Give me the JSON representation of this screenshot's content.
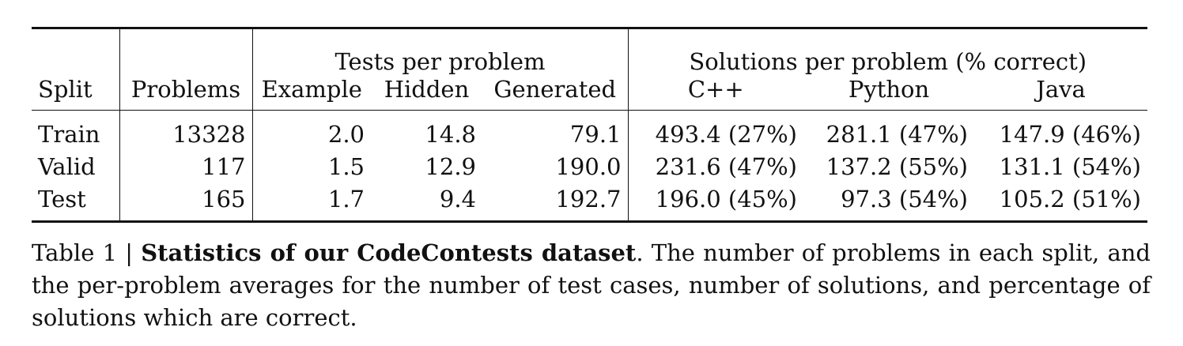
{
  "table": {
    "header_groups": {
      "tests": "Tests per problem",
      "solutions": "Solutions per problem (% correct)"
    },
    "columns": {
      "split": "Split",
      "problems": "Problems",
      "example": "Example",
      "hidden": "Hidden",
      "generated": "Generated",
      "cpp": "C++",
      "python": "Python",
      "java": "Java"
    },
    "rows": [
      {
        "split": "Train",
        "problems": "13328",
        "example": "2.0",
        "hidden": "14.8",
        "generated": "79.1",
        "cpp": "493.4 (27%)",
        "python": "281.1 (47%)",
        "java": "147.9 (46%)"
      },
      {
        "split": "Valid",
        "problems": "117",
        "example": "1.5",
        "hidden": "12.9",
        "generated": "190.0",
        "cpp": "231.6 (47%)",
        "python": "137.2 (55%)",
        "java": "131.1 (54%)"
      },
      {
        "split": "Test",
        "problems": "165",
        "example": "1.7",
        "hidden": "9.4",
        "generated": "192.7",
        "cpp": "196.0 (45%)",
        "python": "97.3 (54%)",
        "java": "105.2 (51%)"
      }
    ]
  },
  "caption": {
    "label": "Table 1 | ",
    "title": "Statistics of our CodeContests dataset",
    "body": ". The number of problems in each split, and the per-problem averages for the number of test cases, number of solutions, and percentage of solutions which are correct."
  }
}
